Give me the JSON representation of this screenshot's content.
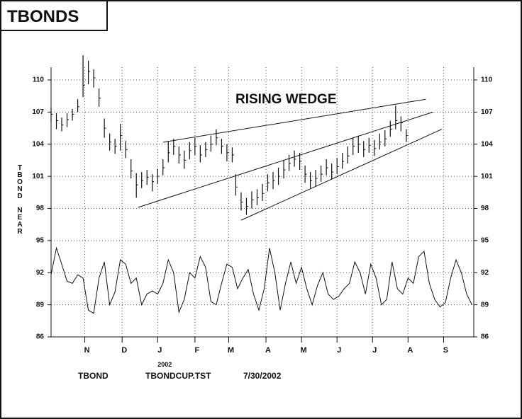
{
  "title": "TBONDS",
  "chart_data": {
    "type": "ohlc",
    "y_label": "TBOND NEAR",
    "annotation": "RISING WEDGE",
    "year_label": "2002",
    "footer": [
      "TBOND",
      "TBONDCUP.TST",
      "7/30/2002"
    ],
    "color": "#111111",
    "grid": true,
    "xlim": [
      0,
      238
    ],
    "xticks": [
      {
        "value": 19,
        "label": "N"
      },
      {
        "value": 40,
        "label": "D"
      },
      {
        "value": 60,
        "label": "J"
      },
      {
        "value": 81,
        "label": "F"
      },
      {
        "value": 100,
        "label": "M"
      },
      {
        "value": 121,
        "label": "A"
      },
      {
        "value": 141,
        "label": "M"
      },
      {
        "value": 161,
        "label": "J"
      },
      {
        "value": 181,
        "label": "J"
      },
      {
        "value": 201,
        "label": "A"
      },
      {
        "value": 221,
        "label": "S"
      }
    ],
    "ylim": [
      86,
      110
    ],
    "yticks": [
      86,
      89,
      92,
      95,
      98,
      101,
      104,
      107,
      110
    ],
    "bars": {
      "x": [
        0,
        3,
        6,
        9,
        12,
        15,
        18,
        21,
        24,
        27,
        30,
        33,
        36,
        39,
        42,
        45,
        48,
        51,
        54,
        57,
        60,
        63,
        66,
        69,
        72,
        75,
        78,
        81,
        84,
        87,
        90,
        93,
        96,
        99,
        102,
        104,
        107,
        110,
        113,
        116,
        119,
        122,
        125,
        128,
        131,
        134,
        137,
        140,
        143,
        146,
        149,
        152,
        155,
        158,
        161,
        164,
        167,
        170,
        173,
        176,
        179,
        182,
        185,
        188,
        191,
        194,
        197,
        200
      ],
      "high": [
        107.4,
        106.9,
        106.5,
        106.9,
        107.3,
        108.2,
        112.3,
        111.8,
        111.0,
        109.2,
        106.4,
        105.0,
        104.5,
        105.9,
        104.3,
        102.6,
        101.3,
        101.4,
        101.6,
        101.2,
        101.7,
        102.6,
        104.3,
        104.5,
        103.8,
        103.4,
        104.2,
        104.6,
        103.9,
        104.2,
        104.8,
        105.4,
        104.5,
        104.0,
        103.7,
        101.2,
        99.5,
        99.0,
        99.6,
        99.8,
        100.3,
        101.2,
        101.4,
        101.8,
        102.5,
        103.0,
        103.4,
        103.2,
        102.0,
        101.4,
        101.6,
        102.0,
        102.6,
        102.2,
        102.7,
        103.2,
        103.8,
        104.6,
        104.8,
        104.3,
        104.6,
        104.4,
        105.0,
        105.3,
        106.2,
        107.6,
        106.6,
        105.4
      ],
      "low": [
        106.1,
        105.4,
        105.2,
        105.6,
        106.2,
        107.0,
        108.4,
        109.6,
        109.3,
        107.5,
        104.6,
        103.4,
        103.1,
        103.4,
        102.7,
        100.8,
        99.0,
        99.9,
        100.2,
        99.6,
        100.3,
        101.1,
        102.3,
        103.0,
        102.2,
        101.7,
        102.6,
        103.0,
        102.3,
        102.8,
        103.3,
        103.9,
        103.1,
        102.4,
        102.3,
        99.2,
        97.8,
        97.4,
        98.0,
        98.3,
        98.7,
        99.6,
        99.8,
        100.2,
        100.8,
        101.5,
        101.9,
        101.6,
        100.4,
        99.9,
        100.1,
        100.5,
        101.1,
        100.7,
        101.2,
        101.7,
        102.2,
        103.0,
        103.2,
        102.8,
        103.2,
        102.9,
        103.5,
        103.8,
        104.7,
        105.4,
        105.2,
        104.2
      ],
      "close": [
        106.8,
        106.2,
        105.8,
        106.3,
        106.8,
        107.5,
        109.5,
        110.8,
        110.2,
        108.3,
        105.5,
        104.2,
        103.8,
        104.8,
        103.5,
        101.5,
        100.2,
        100.6,
        100.9,
        100.5,
        101.0,
        101.8,
        103.2,
        103.8,
        103.0,
        102.5,
        103.4,
        103.8,
        103.0,
        103.5,
        104.0,
        104.6,
        103.8,
        103.2,
        103.0,
        100.0,
        98.6,
        98.2,
        98.8,
        99.0,
        99.4,
        100.4,
        100.6,
        101.0,
        101.6,
        102.2,
        102.6,
        102.4,
        101.2,
        100.6,
        100.8,
        101.2,
        101.8,
        101.4,
        101.9,
        102.4,
        102.9,
        103.8,
        104.0,
        103.5,
        103.9,
        103.6,
        104.2,
        104.5,
        105.4,
        106.2,
        106.0,
        104.8
      ]
    },
    "oscillator": {
      "x": [
        0,
        3,
        6,
        9,
        12,
        15,
        18,
        21,
        24,
        27,
        30,
        33,
        36,
        39,
        42,
        45,
        48,
        51,
        54,
        57,
        60,
        63,
        66,
        69,
        72,
        75,
        78,
        81,
        84,
        87,
        90,
        93,
        96,
        99,
        102,
        105,
        108,
        111,
        114,
        117,
        120,
        123,
        126,
        129,
        132,
        135,
        138,
        141,
        144,
        147,
        150,
        153,
        156,
        159,
        162,
        165,
        168,
        171,
        174,
        177,
        180,
        183,
        186,
        189,
        192,
        195,
        198,
        201,
        204,
        207,
        210,
        213,
        216,
        219,
        222,
        225,
        228,
        231,
        234,
        237
      ],
      "values": [
        91.8,
        94.3,
        92.8,
        91.2,
        91.0,
        91.8,
        91.5,
        88.5,
        88.2,
        91.5,
        93.0,
        89.0,
        90.2,
        93.2,
        92.8,
        91.0,
        91.5,
        89.0,
        90.0,
        90.3,
        90.0,
        91.0,
        93.2,
        92.0,
        88.3,
        89.5,
        92.0,
        91.5,
        93.5,
        92.5,
        89.3,
        89.0,
        91.0,
        92.8,
        92.5,
        90.5,
        91.5,
        92.3,
        90.0,
        88.5,
        90.5,
        94.3,
        92.0,
        88.5,
        91.0,
        93.0,
        91.0,
        92.5,
        90.5,
        89.0,
        90.8,
        92.0,
        90.0,
        89.5,
        89.8,
        90.5,
        91.0,
        93.0,
        92.0,
        90.0,
        92.8,
        91.5,
        89.0,
        89.5,
        93.0,
        90.5,
        90.0,
        91.5,
        91.0,
        93.5,
        94.0,
        91.0,
        89.5,
        88.8,
        89.2,
        91.5,
        93.2,
        92.0,
        90.0,
        89.0
      ]
    },
    "trend_lines": [
      {
        "x": [
          63,
          211
        ],
        "y": [
          104.18,
          108.2
        ]
      },
      {
        "x": [
          49,
          215
        ],
        "y": [
          98.1,
          107.0
        ]
      },
      {
        "x": [
          107,
          220
        ],
        "y": [
          96.9,
          105.4
        ]
      }
    ]
  }
}
